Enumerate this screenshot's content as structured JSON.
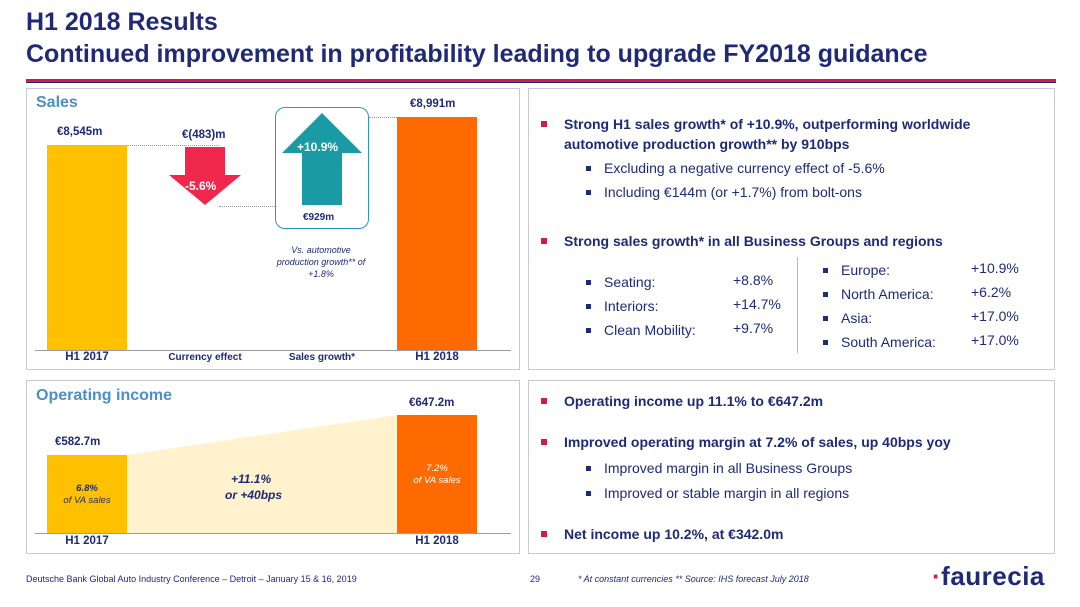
{
  "header": {
    "title": "H1 2018 Results",
    "subtitle": "Continued improvement in profitability leading to upgrade FY2018 guidance"
  },
  "colors": {
    "navy": "#1e2a78",
    "accent_red": "#cf1e46",
    "yellow": "#ffc000",
    "orange": "#ff6a00",
    "teal": "#1a9aa5",
    "pink_red": "#f0274d",
    "light_blue": "#4a8fc8"
  },
  "sales_chart": {
    "heading": "Sales",
    "h1_2017_value": "€8,545m",
    "currency_value": "€(483)m",
    "currency_pct": "-5.6%",
    "growth_pct": "+10.9%",
    "growth_value": "€929m",
    "h1_2018_value": "€8,991m",
    "note": "Vs. automotive production growth** of +1.8%",
    "categories": [
      "H1 2017",
      "Currency effect",
      "Sales growth*",
      "H1 2018"
    ]
  },
  "operating_chart": {
    "heading": "Operating income",
    "h1_2017_value": "€582.7m",
    "h1_2017_margin": "6.8%",
    "h1_2017_margin_sub": "of VA sales",
    "h1_2018_value": "€647.2m",
    "h1_2018_margin": "7.2%",
    "h1_2018_margin_sub": "of VA sales",
    "growth": "+11.1%",
    "growth_sub": "or +40bps",
    "categories": [
      "H1 2017",
      "H1 2018"
    ]
  },
  "chart_data": [
    {
      "type": "bar",
      "title": "Sales",
      "categories": [
        "H1 2017",
        "Currency effect",
        "Sales growth*",
        "H1 2018"
      ],
      "values": [
        8545,
        -483,
        929,
        8991
      ],
      "units": "€m"
    },
    {
      "type": "bar",
      "title": "Operating income",
      "categories": [
        "H1 2017",
        "H1 2018"
      ],
      "values": [
        582.7,
        647.2
      ],
      "units": "€m",
      "margins": [
        "6.8%",
        "7.2%"
      ]
    }
  ],
  "sales_text": {
    "bullet1": "Strong H1 sales growth* of +10.9%, outperforming worldwide automotive production growth** by 910bps",
    "sub1": "Excluding a negative currency effect of -5.6%",
    "sub2": "Including €144m (or +1.7%) from bolt-ons",
    "bullet2": "Strong sales growth* in all Business Groups and regions",
    "groups": [
      {
        "label": "Seating:",
        "value": "+8.8%"
      },
      {
        "label": "Interiors:",
        "value": "+14.7%"
      },
      {
        "label": "Clean Mobility:",
        "value": "+9.7%"
      }
    ],
    "regions": [
      {
        "label": "Europe:",
        "value": "+10.9%"
      },
      {
        "label": "North America:",
        "value": "+6.2%"
      },
      {
        "label": "Asia:",
        "value": "+17.0%"
      },
      {
        "label": "South America:",
        "value": "+17.0%"
      }
    ]
  },
  "oi_text": {
    "bullet1": "Operating income up 11.1% to €647.2m",
    "bullet2": "Improved operating margin at 7.2% of sales, up 40bps yoy",
    "sub1": "Improved margin in all Business Groups",
    "sub2": "Improved or stable margin in all regions",
    "bullet3": "Net income up 10.2%, at €342.0m"
  },
  "footer": {
    "event": "Deutsche Bank Global Auto Industry Conference – Detroit – January 15 & 16, 2019",
    "page": "29",
    "note": "* At constant currencies ** Source: IHS forecast July 2018",
    "logo": "faurecia",
    "logo_mark": "·"
  }
}
